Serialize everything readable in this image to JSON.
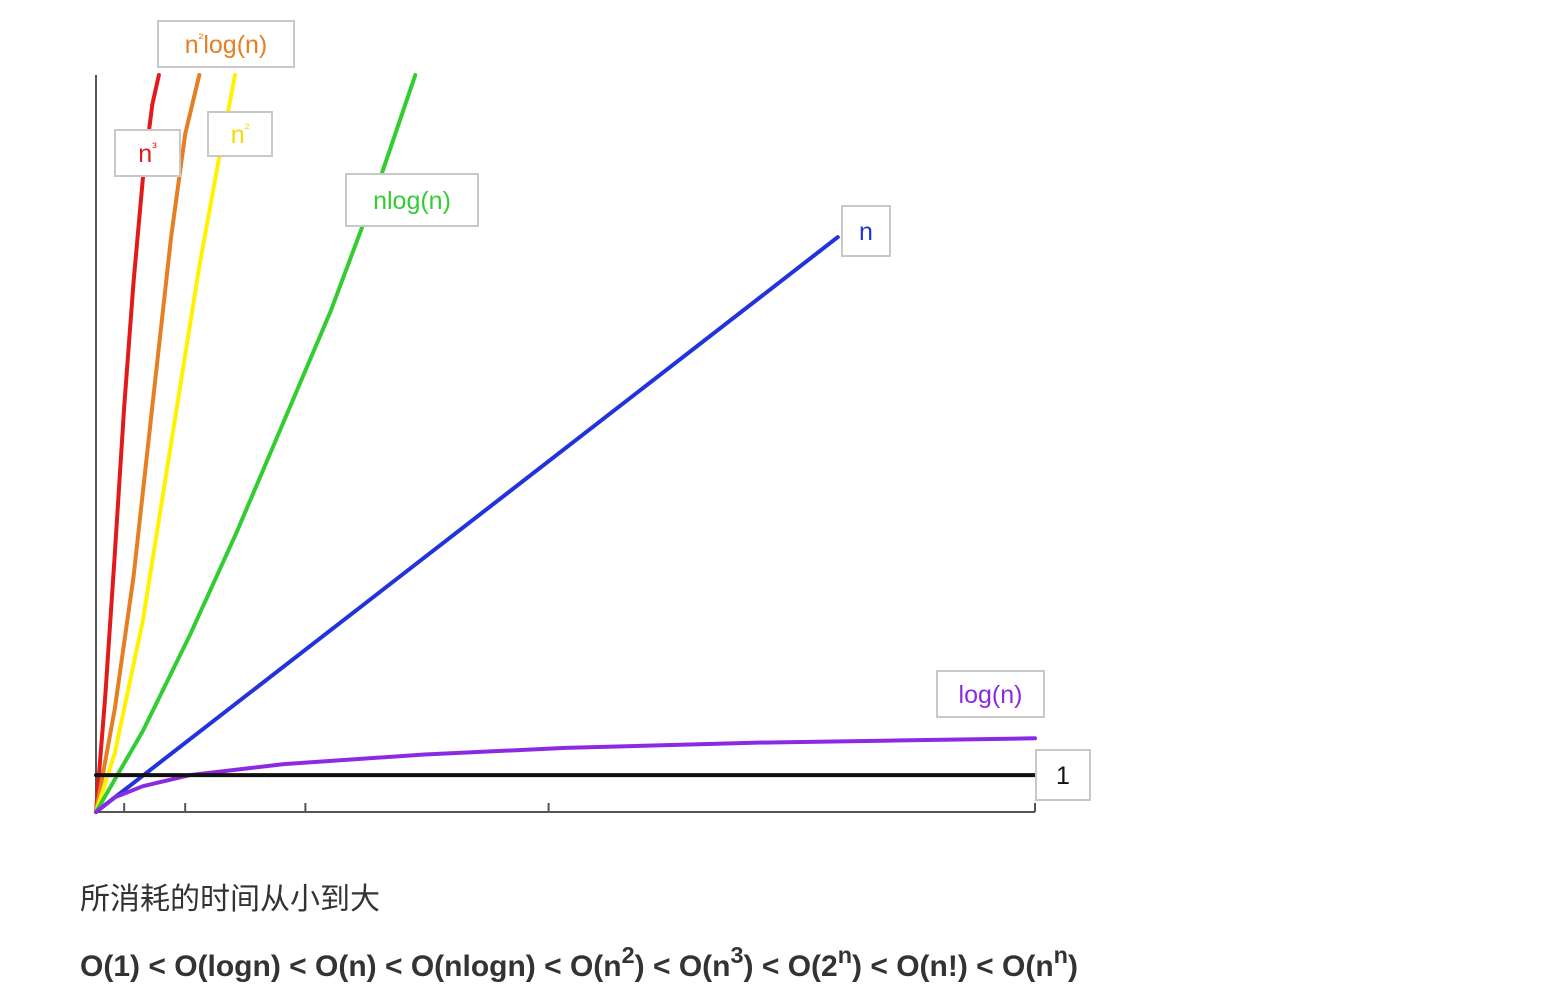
{
  "chart_data": {
    "type": "line",
    "xlim": [
      0,
      1
    ],
    "ylim": [
      0,
      1
    ],
    "grid": false,
    "series": [
      {
        "name": "n³",
        "label_base": "n",
        "label_sup": "³",
        "color": "#e31a1c",
        "x": [
          0,
          0.01,
          0.02,
          0.03,
          0.04,
          0.05,
          0.06,
          0.067
        ],
        "y": [
          0,
          0.16,
          0.35,
          0.55,
          0.72,
          0.86,
          0.96,
          1.0
        ]
      },
      {
        "name": "n²log(n)",
        "label_base": "n",
        "label_sup": "²",
        "label_rest": "log(n)",
        "color": "#e67e22",
        "x": [
          0,
          0.02,
          0.04,
          0.06,
          0.08,
          0.095,
          0.11
        ],
        "y": [
          0,
          0.14,
          0.32,
          0.55,
          0.78,
          0.92,
          1.0
        ]
      },
      {
        "name": "n²",
        "label_base": "n",
        "label_sup": "²",
        "color": "#fff200",
        "x": [
          0,
          0.02,
          0.05,
          0.08,
          0.11,
          0.13,
          0.148
        ],
        "y": [
          0,
          0.08,
          0.26,
          0.5,
          0.74,
          0.88,
          1.0
        ]
      },
      {
        "name": "nlog(n)",
        "label_base": "nlog(n)",
        "color": "#33cc33",
        "x": [
          0,
          0.05,
          0.1,
          0.15,
          0.2,
          0.25,
          0.3,
          0.34
        ],
        "y": [
          0,
          0.11,
          0.24,
          0.38,
          0.53,
          0.68,
          0.85,
          1.0
        ]
      },
      {
        "name": "n",
        "label_base": "n",
        "color": "#2233dd",
        "x": [
          0,
          0.79
        ],
        "y": [
          0,
          0.78
        ]
      },
      {
        "name": "log(n)",
        "label_base": "log(n)",
        "color": "#8a2be2",
        "x": [
          0,
          0.02,
          0.05,
          0.1,
          0.2,
          0.35,
          0.5,
          0.7,
          0.85,
          1.0
        ],
        "y": [
          0,
          0.02,
          0.035,
          0.05,
          0.065,
          0.078,
          0.087,
          0.094,
          0.097,
          0.1
        ]
      },
      {
        "name": "1",
        "label_base": "1",
        "color": "#111111",
        "x": [
          0,
          1
        ],
        "y": [
          0.05,
          0.05
        ]
      }
    ]
  },
  "caption": "所消耗的时间从小到大",
  "order_terms": [
    {
      "text": "O(1) < O(logn) < O(n) < O(nlogn) < O(n",
      "sup": "2"
    },
    {
      "text": ") < O(n",
      "sup": "3"
    },
    {
      "text": ") < O(2",
      "sup": "n"
    },
    {
      "text": ") < O(n!) < O(n",
      "sup": "n"
    },
    {
      "text": ")",
      "sup": ""
    }
  ]
}
